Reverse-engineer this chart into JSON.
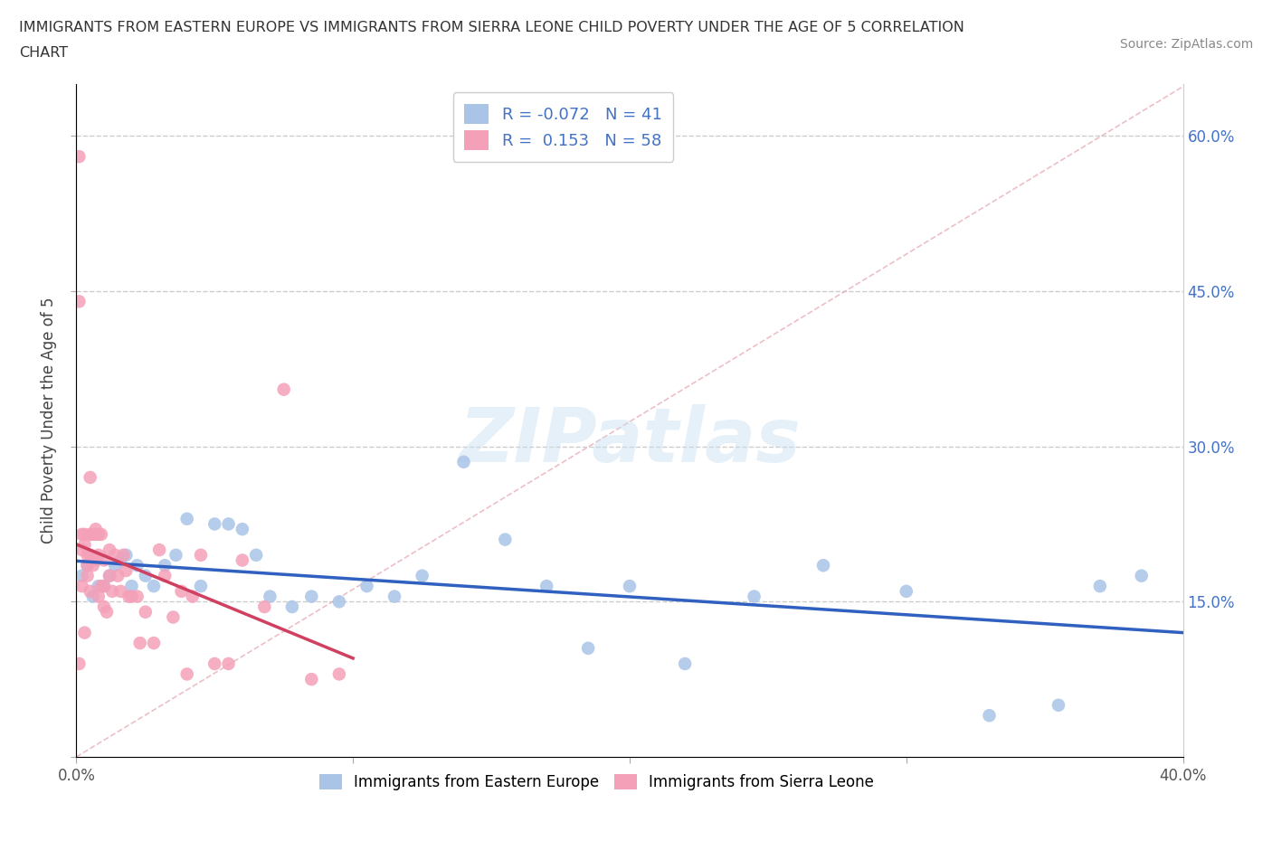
{
  "title": "IMMIGRANTS FROM EASTERN EUROPE VS IMMIGRANTS FROM SIERRA LEONE CHILD POVERTY UNDER THE AGE OF 5 CORRELATION\nCHART",
  "source_text": "Source: ZipAtlas.com",
  "ylabel": "Child Poverty Under the Age of 5",
  "xlim": [
    0.0,
    0.4
  ],
  "ylim": [
    0.0,
    0.65
  ],
  "yticks": [
    0.0,
    0.15,
    0.3,
    0.45,
    0.6
  ],
  "ytick_labels": [
    "",
    "15.0%",
    "30.0%",
    "45.0%",
    "60.0%"
  ],
  "xticks": [
    0.0,
    0.1,
    0.2,
    0.3,
    0.4
  ],
  "xtick_labels": [
    "0.0%",
    "",
    "",
    "",
    "40.0%"
  ],
  "r_eastern": -0.072,
  "n_eastern": 41,
  "r_sierra": 0.153,
  "n_sierra": 58,
  "color_eastern": "#aac4e8",
  "color_sierra": "#f4a0b8",
  "line_color_eastern": "#3060c0",
  "line_color_sierra": "#d04060",
  "diag_color": "#e0a0a8",
  "background_color": "#ffffff",
  "watermark": "ZIPatlas",
  "eastern_europe_x": [
    0.002,
    0.004,
    0.006,
    0.008,
    0.01,
    0.012,
    0.014,
    0.016,
    0.018,
    0.02,
    0.022,
    0.025,
    0.028,
    0.032,
    0.036,
    0.04,
    0.045,
    0.05,
    0.055,
    0.06,
    0.065,
    0.07,
    0.078,
    0.085,
    0.095,
    0.105,
    0.115,
    0.125,
    0.14,
    0.155,
    0.17,
    0.185,
    0.2,
    0.22,
    0.245,
    0.27,
    0.3,
    0.33,
    0.355,
    0.37,
    0.385
  ],
  "eastern_europe_y": [
    0.175,
    0.185,
    0.155,
    0.165,
    0.165,
    0.175,
    0.185,
    0.19,
    0.195,
    0.165,
    0.185,
    0.175,
    0.165,
    0.185,
    0.195,
    0.23,
    0.165,
    0.225,
    0.225,
    0.22,
    0.195,
    0.155,
    0.145,
    0.155,
    0.15,
    0.165,
    0.155,
    0.175,
    0.285,
    0.21,
    0.165,
    0.105,
    0.165,
    0.09,
    0.155,
    0.185,
    0.16,
    0.04,
    0.05,
    0.165,
    0.175
  ],
  "sierra_leone_x": [
    0.001,
    0.001,
    0.001,
    0.002,
    0.002,
    0.002,
    0.003,
    0.003,
    0.003,
    0.004,
    0.004,
    0.004,
    0.005,
    0.005,
    0.005,
    0.005,
    0.006,
    0.006,
    0.007,
    0.007,
    0.007,
    0.008,
    0.008,
    0.008,
    0.009,
    0.009,
    0.01,
    0.01,
    0.01,
    0.011,
    0.012,
    0.012,
    0.013,
    0.014,
    0.015,
    0.016,
    0.017,
    0.018,
    0.019,
    0.02,
    0.022,
    0.023,
    0.025,
    0.028,
    0.03,
    0.032,
    0.035,
    0.038,
    0.04,
    0.042,
    0.045,
    0.05,
    0.055,
    0.06,
    0.068,
    0.075,
    0.085,
    0.095
  ],
  "sierra_leone_y": [
    0.58,
    0.44,
    0.09,
    0.215,
    0.2,
    0.165,
    0.215,
    0.205,
    0.12,
    0.195,
    0.185,
    0.175,
    0.27,
    0.215,
    0.195,
    0.16,
    0.215,
    0.185,
    0.22,
    0.215,
    0.19,
    0.215,
    0.195,
    0.155,
    0.215,
    0.165,
    0.19,
    0.165,
    0.145,
    0.14,
    0.2,
    0.175,
    0.16,
    0.195,
    0.175,
    0.16,
    0.195,
    0.18,
    0.155,
    0.155,
    0.155,
    0.11,
    0.14,
    0.11,
    0.2,
    0.175,
    0.135,
    0.16,
    0.08,
    0.155,
    0.195,
    0.09,
    0.09,
    0.19,
    0.145,
    0.355,
    0.075,
    0.08
  ]
}
